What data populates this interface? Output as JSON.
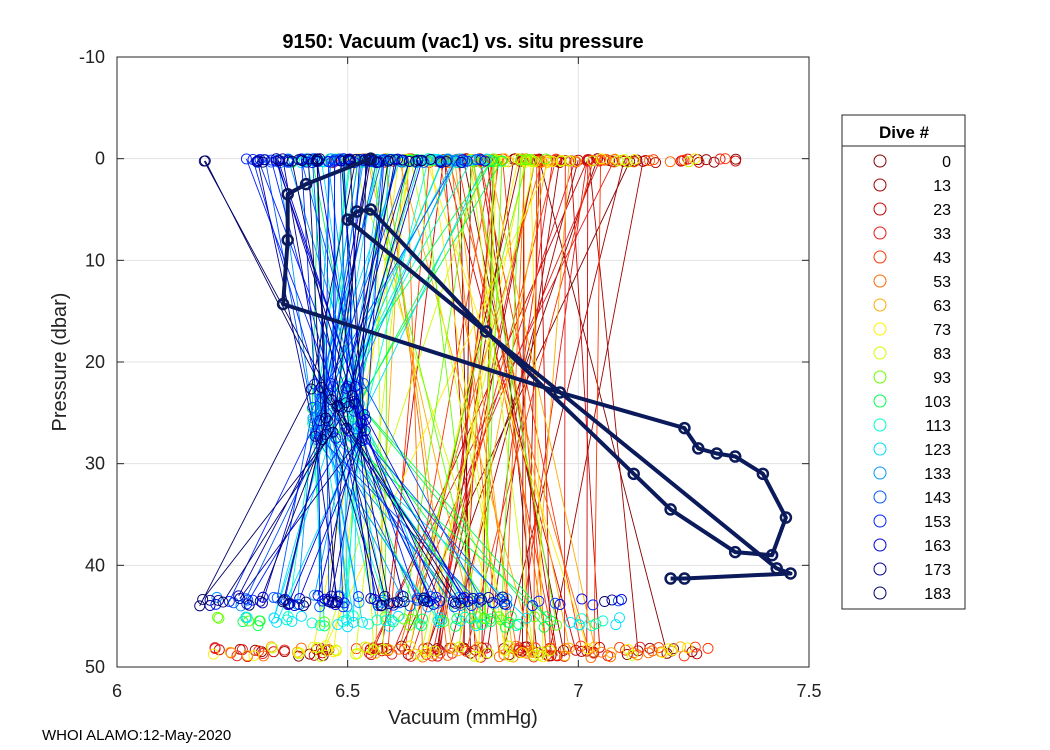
{
  "chart_data": {
    "type": "scatter",
    "title": "9150: Vacuum (vac1) vs. situ pressure",
    "xlabel": "Vacuum (mmHg)",
    "ylabel": "Pressure (dbar)",
    "xlim": [
      6,
      7.5
    ],
    "ylim": [
      -10,
      50
    ],
    "y_reversed": true,
    "grid": true,
    "xticks": [
      6,
      6.5,
      7,
      7.5
    ],
    "yticks": [
      -10,
      0,
      10,
      20,
      30,
      40,
      50
    ],
    "xtick_labels": [
      "6",
      "6.5",
      "7",
      "7.5"
    ],
    "ytick_labels": [
      "-10",
      "0",
      "10",
      "20",
      "30",
      "40",
      "50"
    ],
    "legend": {
      "title": "Dive #",
      "placement": "outside-right",
      "entries": [
        {
          "label": "0",
          "color": "#800000"
        },
        {
          "label": "13",
          "color": "#a30000"
        },
        {
          "label": "23",
          "color": "#cc0000"
        },
        {
          "label": "33",
          "color": "#e61a1a"
        },
        {
          "label": "43",
          "color": "#ff3300"
        },
        {
          "label": "53",
          "color": "#ff6600"
        },
        {
          "label": "63",
          "color": "#ffaa00"
        },
        {
          "label": "73",
          "color": "#ffee00"
        },
        {
          "label": "83",
          "color": "#ccff00"
        },
        {
          "label": "93",
          "color": "#66ff00"
        },
        {
          "label": "103",
          "color": "#00ff55"
        },
        {
          "label": "113",
          "color": "#00ffcc"
        },
        {
          "label": "123",
          "color": "#00ddff"
        },
        {
          "label": "133",
          "color": "#0099ff"
        },
        {
          "label": "143",
          "color": "#0055ff"
        },
        {
          "label": "153",
          "color": "#0022ff"
        },
        {
          "label": "163",
          "color": "#0000dd"
        },
        {
          "label": "173",
          "color": "#000099"
        },
        {
          "label": "183",
          "color": "#000066"
        }
      ]
    },
    "highlight_series": {
      "name": "183",
      "color": "#0a1a5a",
      "points": [
        [
          6.55,
          0
        ],
        [
          6.41,
          2.5
        ],
        [
          6.37,
          3.5
        ],
        [
          6.37,
          8
        ],
        [
          6.36,
          14.3
        ],
        [
          6.96,
          23
        ],
        [
          7.23,
          26.5
        ],
        [
          7.26,
          28.5
        ],
        [
          7.3,
          29
        ],
        [
          7.34,
          29.3
        ],
        [
          7.4,
          31
        ],
        [
          7.45,
          35.3
        ],
        [
          7.42,
          39
        ],
        [
          7.34,
          38.7
        ],
        [
          7.2,
          34.5
        ],
        [
          7.12,
          31
        ],
        [
          6.8,
          17
        ],
        [
          6.55,
          5
        ],
        [
          6.52,
          5.2
        ],
        [
          6.5,
          6
        ],
        [
          7.43,
          40.3
        ],
        [
          7.46,
          40.8
        ],
        [
          7.23,
          41.3
        ],
        [
          7.2,
          41.3
        ]
      ]
    }
  },
  "footer": "WHOI ALAMO:12-May-2020"
}
